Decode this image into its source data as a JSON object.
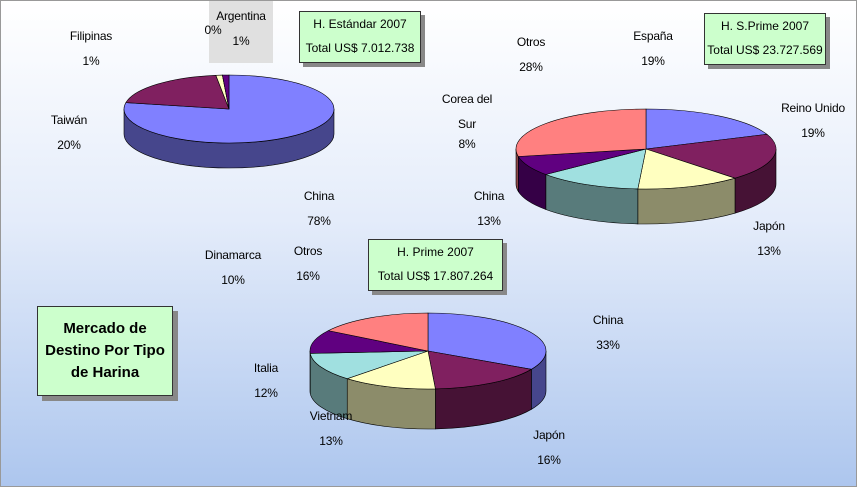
{
  "title": "Mercado de Destino Por Tipo de Harina",
  "chart_data": [
    {
      "type": "pie3d",
      "title": "H. Estándar 2007",
      "subtitle": "Total US$ 7.012.738",
      "categories": [
        "China",
        "Taiwán",
        "Filipinas",
        null,
        "Argentina"
      ],
      "values": [
        78,
        20,
        1,
        0,
        1
      ],
      "value_labels": [
        "78%",
        "20%",
        "1%",
        "0%",
        "1%"
      ],
      "colors": [
        "#8080ff",
        "#802060",
        "#ffffc0",
        "#a0e0e0",
        "#600080"
      ]
    },
    {
      "type": "pie3d",
      "title": "H. S.Prime 2007",
      "subtitle": "Total US$ 23.727.569",
      "categories": [
        "España",
        "Reino Unido",
        "Japón",
        "China",
        "Corea del Sur",
        "Otros"
      ],
      "values": [
        19,
        19,
        13,
        13,
        8,
        28
      ],
      "value_labels": [
        "19%",
        "19%",
        "13%",
        "13%",
        "8%",
        "28%"
      ],
      "colors": [
        "#8080ff",
        "#802060",
        "#ffffc0",
        "#a0e0e0",
        "#600080",
        "#ff8080"
      ]
    },
    {
      "type": "pie3d",
      "title": "H. Prime 2007",
      "subtitle": "Total US$ 17.807.264",
      "categories": [
        "China",
        "Japón",
        "Vietnam",
        "Italia",
        "Dinamarca",
        "Otros"
      ],
      "values": [
        33,
        16,
        13,
        12,
        10,
        16
      ],
      "value_labels": [
        "33%",
        "16%",
        "13%",
        "12%",
        "10%",
        "16%"
      ],
      "colors": [
        "#8080ff",
        "#802060",
        "#ffffc0",
        "#a0e0e0",
        "#600080",
        "#ff8080"
      ]
    }
  ]
}
